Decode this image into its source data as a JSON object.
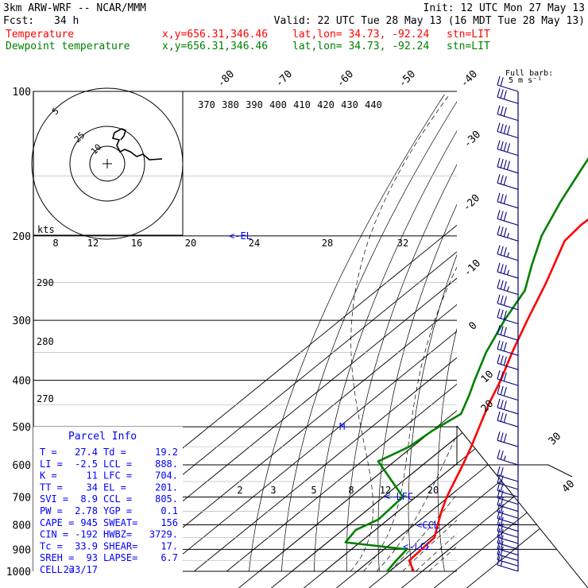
{
  "header": {
    "line1_left": "3km ARW-WRF -- NCAR/MMM",
    "line1_right": "Init: 12 UTC Mon 27 May 13",
    "fcst_label": "Fcst:",
    "fcst_value": "34 h",
    "valid": "Valid: 22 UTC Tue 28 May 13 (16 MDT Tue 28 May 13)",
    "temp_label": "Temperature",
    "dew_label": "Dewpoint temperature",
    "xy": "x,y=656.31,346.46",
    "latlon": "lat,lon= 34.73, -92.24",
    "stn": "stn=LIT"
  },
  "barb_legend": {
    "line1": "Full barb:",
    "line2": "5 m s⁻¹"
  },
  "colors": {
    "temperature": "#ff0000",
    "dewpoint": "#008000",
    "barbs": "#000080",
    "parcel": "#0000ff"
  },
  "hodograph": {
    "ring_labels": [
      "5",
      "25",
      "10"
    ]
  },
  "kts_label": "kts",
  "parcel_info": {
    "title": "Parcel Info",
    "rows": [
      {
        "l": "T  =",
        "lv": "27.4",
        "r": "Td =",
        "rv": "19.2"
      },
      {
        "l": "LI =",
        "lv": "-2.5",
        "r": "LCL =",
        "rv": "888."
      },
      {
        "l": "K  =",
        "lv": "11",
        "r": "LFC =",
        "rv": "704."
      },
      {
        "l": "TT =",
        "lv": "34",
        "r": "EL  =",
        "rv": "201."
      },
      {
        "l": "SVI =",
        "lv": "8.9",
        "r": "CCL =",
        "rv": "805."
      },
      {
        "l": "PW =",
        "lv": "2.78",
        "r": "YGP =",
        "rv": "0.1"
      },
      {
        "l": "CAPE =",
        "lv": "945",
        "r": "SWEAT=",
        "rv": "156"
      },
      {
        "l": "CIN =",
        "lv": "-192",
        "r": "HWBZ=",
        "rv": "3729."
      },
      {
        "l": "Tc =",
        "lv": "33.9",
        "r": "SHEAR=",
        "rv": "17."
      },
      {
        "l": "SREH =",
        "lv": "93",
        "r": "LAPSE=",
        "rv": "6.7"
      },
      {
        "l": "CELL =",
        "lv": "233/17",
        "r": "",
        "rv": ""
      }
    ]
  },
  "level_markers": {
    "el": "EL",
    "m": "M",
    "lfc": "LFC",
    "ccl": "CCL",
    "lcl": "LCL"
  },
  "chart_data": {
    "type": "line",
    "title": "",
    "ylabel": "",
    "xlabel": "",
    "y_scale": "log-pressure",
    "ylim": [
      1000,
      100
    ],
    "pressure_ticks": [
      100,
      200,
      300,
      400,
      500,
      600,
      700,
      800,
      900,
      1000
    ],
    "isotherm_ticks": [
      -90,
      -80,
      -70,
      -60,
      -50,
      -40,
      -30,
      -20,
      -10,
      0,
      10,
      20,
      30,
      40
    ],
    "isotherm_tick_labels_top": [
      "-80",
      "-70",
      "-60",
      "-50",
      "-40"
    ],
    "isotherm_tick_labels_right": [
      "-30",
      "-20",
      "-10",
      "0",
      "10",
      "20",
      "30",
      "40"
    ],
    "theta_e_labels": [
      "370",
      "380",
      "390",
      "400",
      "410",
      "420",
      "430",
      "440"
    ],
    "dry_adiabat_labels": [
      "290",
      "280",
      "270"
    ],
    "mixing_ratio_labels_upper": [
      "8",
      "12",
      "16",
      "20",
      "24",
      "28",
      "32"
    ],
    "mixing_ratio_labels_lower": [
      "2",
      "3",
      "5",
      "8",
      "12",
      "20"
    ],
    "series": [
      {
        "name": "Temperature",
        "color": "#ff0000",
        "points": [
          {
            "p": 1000,
            "t": 27.4
          },
          {
            "p": 950,
            "t": 22.0
          },
          {
            "p": 900,
            "t": 21.5
          },
          {
            "p": 850,
            "t": 21.0
          },
          {
            "p": 800,
            "t": 17.2
          },
          {
            "p": 750,
            "t": 13.3
          },
          {
            "p": 700,
            "t": 9.5
          },
          {
            "p": 650,
            "t": 6.0
          },
          {
            "p": 600,
            "t": 2.3
          },
          {
            "p": 550,
            "t": -2.0
          },
          {
            "p": 500,
            "t": -7.0
          },
          {
            "p": 450,
            "t": -12.5
          },
          {
            "p": 400,
            "t": -18.0
          },
          {
            "p": 350,
            "t": -25.0
          },
          {
            "p": 300,
            "t": -32.5
          },
          {
            "p": 250,
            "t": -41.0
          },
          {
            "p": 205,
            "t": -51.0
          },
          {
            "p": 190,
            "t": -52.0
          },
          {
            "p": 175,
            "t": -51.5
          },
          {
            "p": 160,
            "t": -52.0
          },
          {
            "p": 145,
            "t": -54.0
          },
          {
            "p": 130,
            "t": -55.5
          },
          {
            "p": 120,
            "t": -57.5
          },
          {
            "p": 110,
            "t": -61.0
          },
          {
            "p": 100,
            "t": -65.0
          }
        ]
      },
      {
        "name": "Dewpoint temperature",
        "color": "#008000",
        "points": [
          {
            "p": 1000,
            "t": 19.2
          },
          {
            "p": 950,
            "t": 18.0
          },
          {
            "p": 900,
            "t": 17.0
          },
          {
            "p": 870,
            "t": -4.5
          },
          {
            "p": 820,
            "t": -6.0
          },
          {
            "p": 780,
            "t": -3.0
          },
          {
            "p": 700,
            "t": -4.0
          },
          {
            "p": 590,
            "t": -25.0
          },
          {
            "p": 550,
            "t": -21.0
          },
          {
            "p": 510,
            "t": -20.0
          },
          {
            "p": 470,
            "t": -17.5
          },
          {
            "p": 430,
            "t": -22.0
          },
          {
            "p": 400,
            "t": -26.0
          },
          {
            "p": 350,
            "t": -33.0
          },
          {
            "p": 300,
            "t": -39.5
          },
          {
            "p": 260,
            "t": -44.5
          },
          {
            "p": 230,
            "t": -52.0
          },
          {
            "p": 200,
            "t": -60.0
          },
          {
            "p": 170,
            "t": -67.0
          },
          {
            "p": 145,
            "t": -73.0
          },
          {
            "p": 130,
            "t": -77.0
          },
          {
            "p": 115,
            "t": -75.0
          },
          {
            "p": 100,
            "t": -73.0
          }
        ]
      }
    ],
    "wind_barbs": [
      {
        "p": 1000,
        "spd": 7.5
      },
      {
        "p": 975,
        "spd": 7.5
      },
      {
        "p": 950,
        "spd": 10
      },
      {
        "p": 925,
        "spd": 10
      },
      {
        "p": 900,
        "spd": 10
      },
      {
        "p": 875,
        "spd": 10
      },
      {
        "p": 850,
        "spd": 10
      },
      {
        "p": 825,
        "spd": 10
      },
      {
        "p": 800,
        "spd": 10
      },
      {
        "p": 775,
        "spd": 10
      },
      {
        "p": 750,
        "spd": 10
      },
      {
        "p": 725,
        "spd": 10
      },
      {
        "p": 700,
        "spd": 10
      },
      {
        "p": 675,
        "spd": 10
      },
      {
        "p": 650,
        "spd": 10
      },
      {
        "p": 600,
        "spd": 12.5
      },
      {
        "p": 550,
        "spd": 15
      },
      {
        "p": 500,
        "spd": 15
      },
      {
        "p": 470,
        "spd": 15
      },
      {
        "p": 440,
        "spd": 15
      },
      {
        "p": 410,
        "spd": 15
      },
      {
        "p": 380,
        "spd": 15
      },
      {
        "p": 355,
        "spd": 15
      },
      {
        "p": 330,
        "spd": 15
      },
      {
        "p": 305,
        "spd": 15
      },
      {
        "p": 285,
        "spd": 15
      },
      {
        "p": 265,
        "spd": 17.5
      },
      {
        "p": 245,
        "spd": 17.5
      },
      {
        "p": 225,
        "spd": 17.5
      },
      {
        "p": 205,
        "spd": 17.5
      },
      {
        "p": 190,
        "spd": 15
      },
      {
        "p": 175,
        "spd": 15
      },
      {
        "p": 160,
        "spd": 15
      },
      {
        "p": 148,
        "spd": 20
      },
      {
        "p": 136,
        "spd": 20
      },
      {
        "p": 125,
        "spd": 20
      },
      {
        "p": 115,
        "spd": 15
      },
      {
        "p": 106,
        "spd": 15
      },
      {
        "p": 100,
        "spd": 10
      }
    ]
  }
}
